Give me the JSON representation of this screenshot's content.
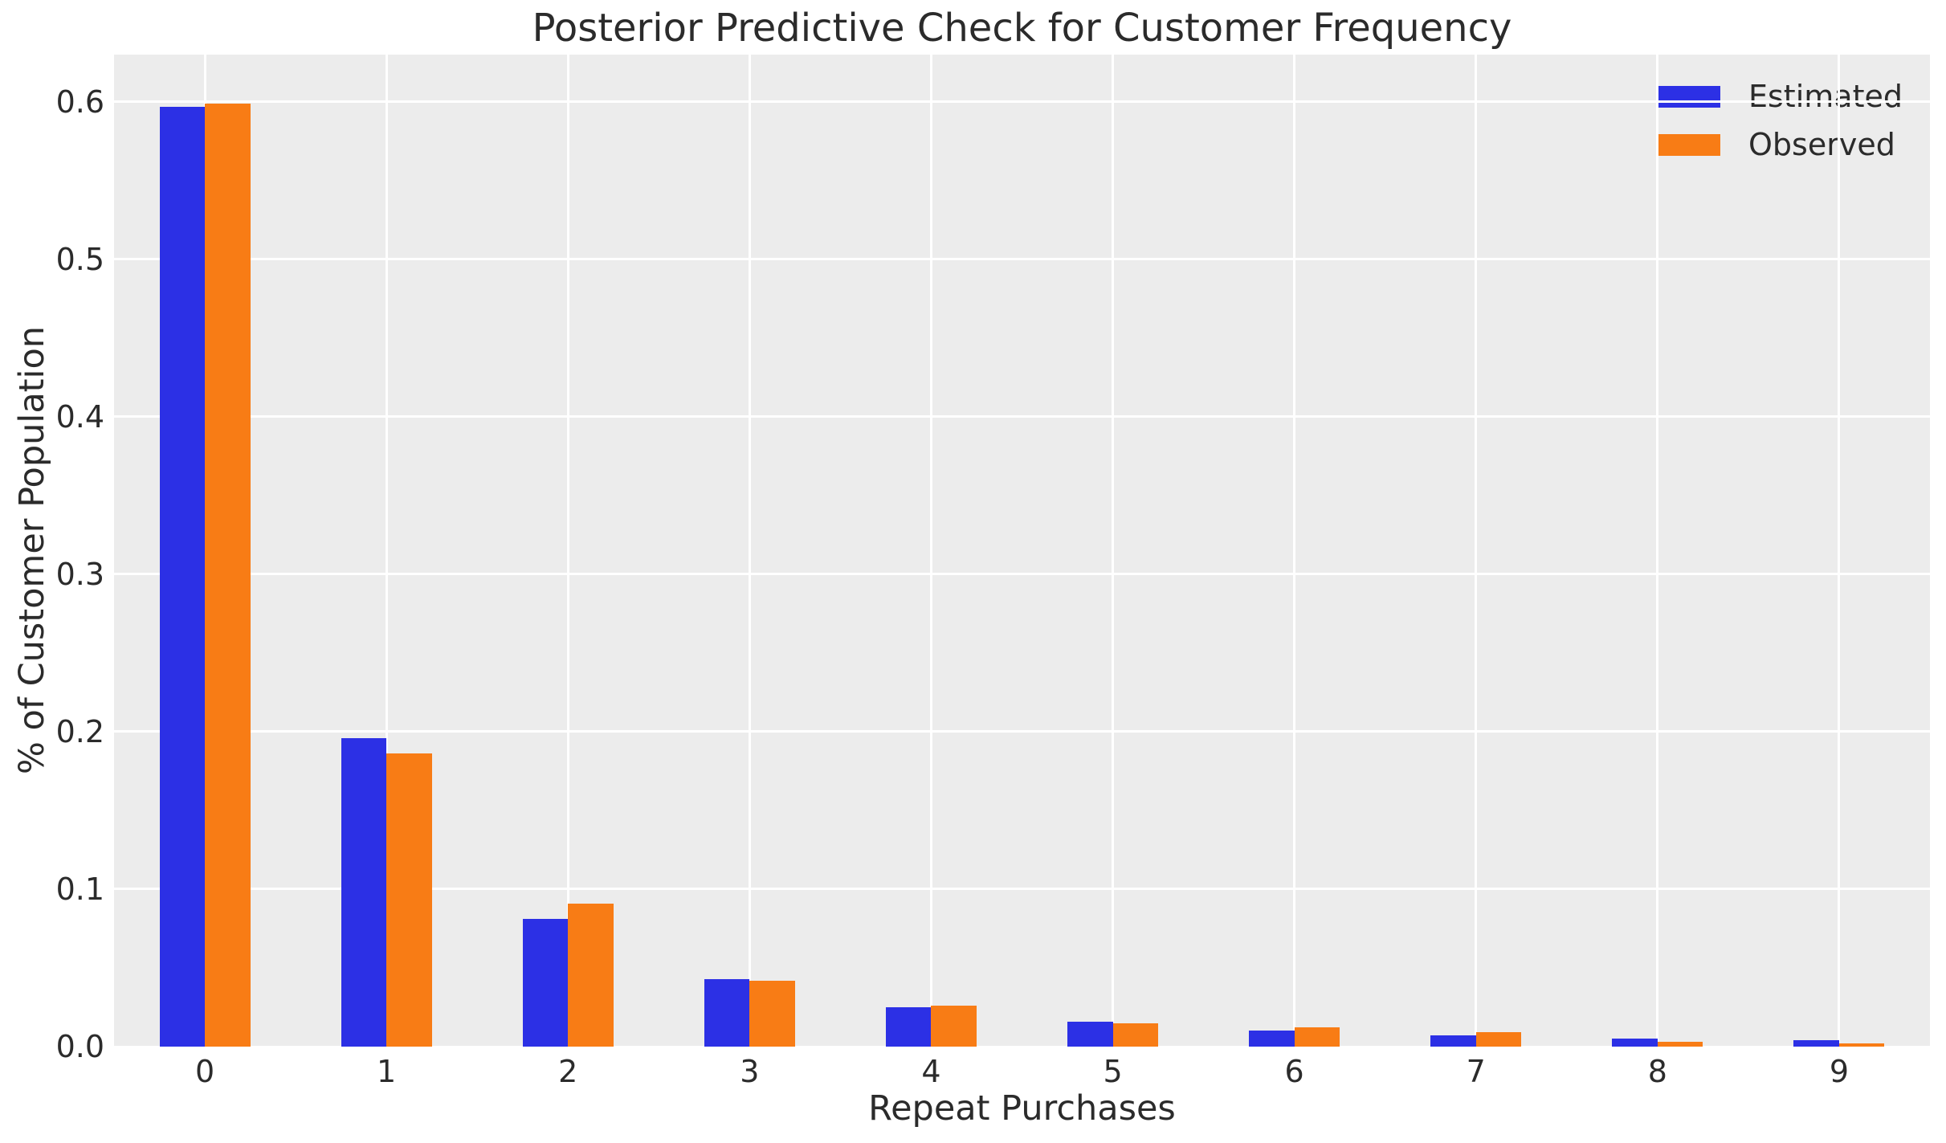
{
  "chart_data": {
    "type": "bar",
    "title": "Posterior Predictive Check for Customer Frequency",
    "xlabel": "Repeat Purchases",
    "ylabel": "% of Customer Population",
    "categories": [
      "0",
      "1",
      "2",
      "3",
      "4",
      "5",
      "6",
      "7",
      "8",
      "9"
    ],
    "series": [
      {
        "name": "Estimated",
        "color": "#2c30e5",
        "values": [
          0.597,
          0.196,
          0.081,
          0.043,
          0.025,
          0.016,
          0.01,
          0.007,
          0.005,
          0.004
        ]
      },
      {
        "name": "Observed",
        "color": "#f87c15",
        "values": [
          0.599,
          0.186,
          0.091,
          0.042,
          0.026,
          0.015,
          0.012,
          0.009,
          0.003,
          0.002
        ]
      }
    ],
    "ylim": [
      0,
      0.63
    ],
    "yticks": [
      "0.0",
      "0.1",
      "0.2",
      "0.3",
      "0.4",
      "0.5",
      "0.6"
    ],
    "grid": true,
    "legend_position": "upper right",
    "colors": {
      "plot_background": "#ececec",
      "grid_line": "#ffffff",
      "text": "#2b2b2b",
      "figure_background": "#ffffff"
    }
  }
}
